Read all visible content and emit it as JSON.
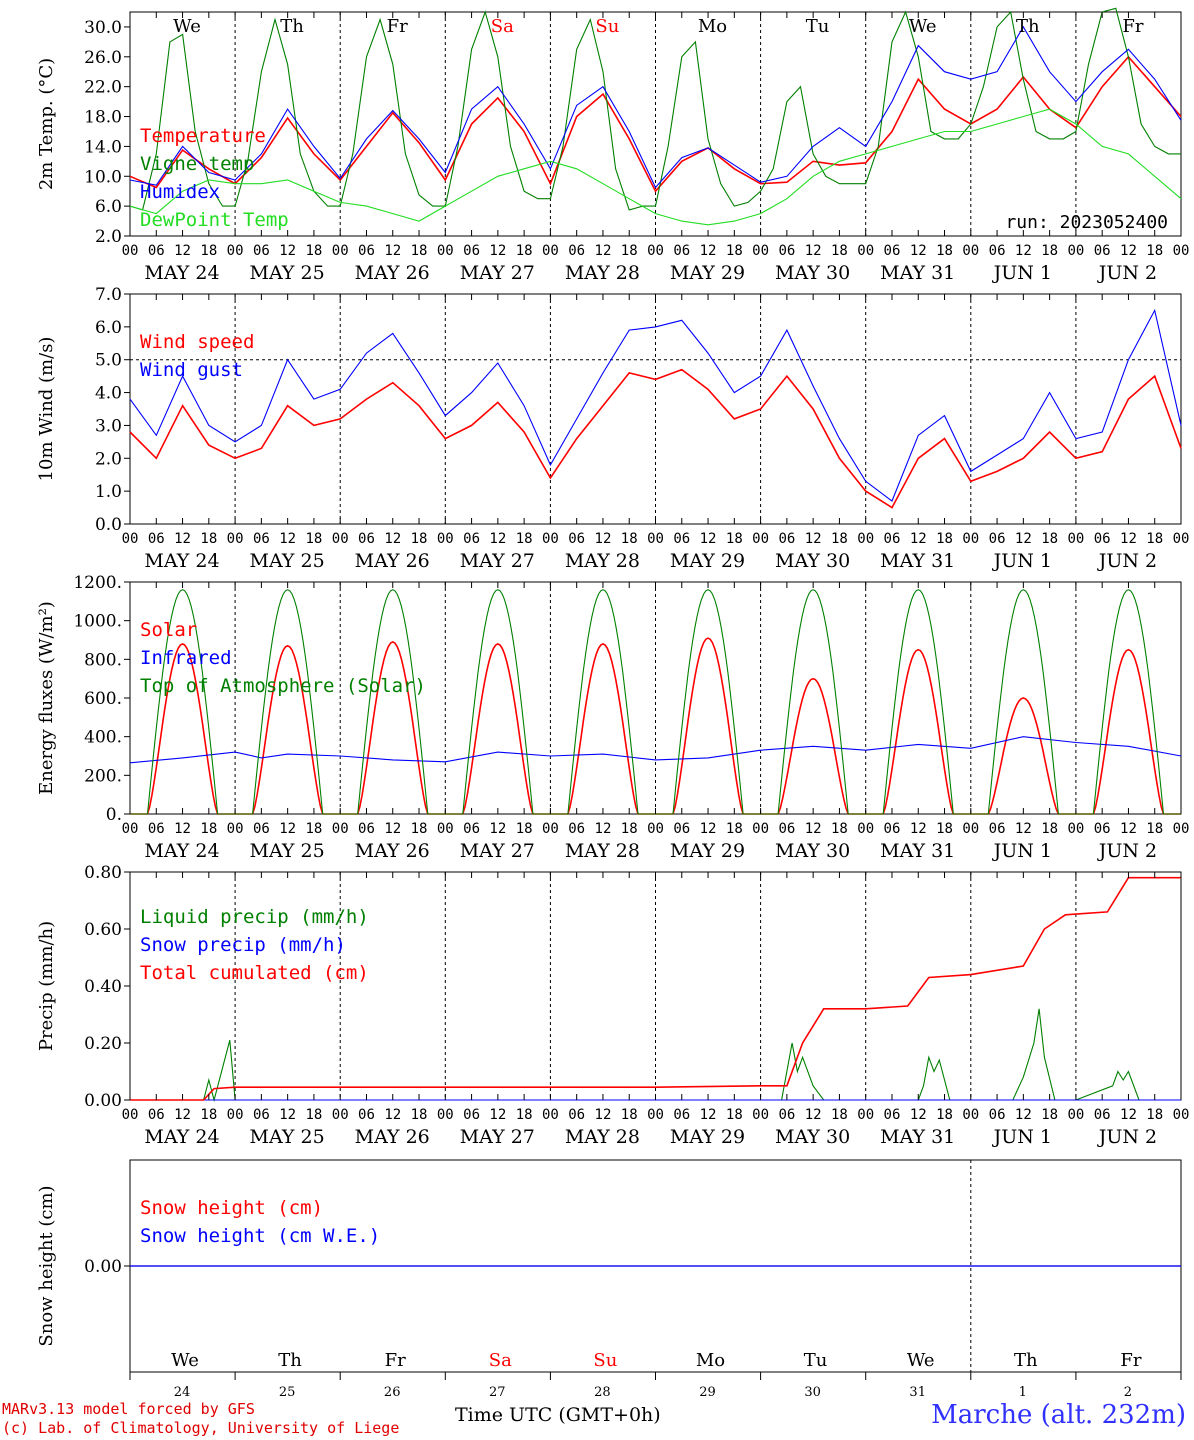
{
  "colors": {
    "red": "#ff0000",
    "green": "#008000",
    "blue": "#0000ff",
    "lightgreen": "#22dd22",
    "violet": "#8040a0"
  },
  "weekdays": [
    {
      "label": "We",
      "color": "#000000"
    },
    {
      "label": "Th",
      "color": "#000000"
    },
    {
      "label": "Fr",
      "color": "#000000"
    },
    {
      "label": "Sa",
      "color": "#ff0000"
    },
    {
      "label": "Su",
      "color": "#ff0000"
    },
    {
      "label": "Mo",
      "color": "#000000"
    },
    {
      "label": "Tu",
      "color": "#000000"
    },
    {
      "label": "We",
      "color": "#000000"
    },
    {
      "label": "Th",
      "color": "#000000"
    },
    {
      "label": "Fr",
      "color": "#000000"
    }
  ],
  "date_labels": [
    "MAY 24",
    "MAY 25",
    "MAY 26",
    "MAY 27",
    "MAY 28",
    "MAY 29",
    "MAY 30",
    "MAY 31",
    "JUN  1",
    "JUN  2"
  ],
  "hour_ticks": [
    "00",
    "06",
    "12",
    "18"
  ],
  "day_numbers": [
    "24",
    "25",
    "26",
    "27",
    "28",
    "29",
    "30",
    "31",
    "1",
    "2"
  ],
  "footer": {
    "model": "MARv3.13 model forced by GFS",
    "lab": "(c) Lab. of Climatology, University of Liege",
    "xtitle": "Time UTC (GMT+0h)",
    "station": "Marche (alt. 232m)"
  },
  "chart_data": [
    {
      "type": "line",
      "ylabel": "2m Temp. (°C)",
      "ylim": [
        2,
        32
      ],
      "yticks": [
        "2.0",
        "6.0",
        "10.0",
        "14.0",
        "18.0",
        "22.0",
        "26.0",
        "30.0"
      ],
      "annotation": "run: 2023052400",
      "series": [
        {
          "name": "Temperature",
          "color": "#ff0000",
          "x": [
            0,
            0.25,
            0.5,
            0.75,
            1,
            1.25,
            1.5,
            1.75,
            2,
            2.25,
            2.5,
            2.75,
            3,
            3.25,
            3.5,
            3.75,
            4,
            4.25,
            4.5,
            4.75,
            5,
            5.25,
            5.5,
            5.75,
            6,
            6.25,
            6.5,
            6.75,
            7,
            7.25,
            7.5,
            7.75,
            8,
            8.25,
            8.5,
            8.75,
            9,
            9.25,
            9.5,
            9.75,
            10
          ],
          "y": [
            10,
            8.5,
            13.5,
            11,
            9,
            12.5,
            17.8,
            13,
            9.5,
            14,
            18.5,
            14.5,
            9.5,
            17,
            20.5,
            16,
            9,
            18,
            21,
            15,
            8,
            12,
            13.8,
            11,
            9,
            9.2,
            12,
            11.5,
            11.8,
            16,
            23,
            19,
            17,
            19,
            23.3,
            19,
            16.5,
            22,
            26,
            22,
            18
          ]
        },
        {
          "name": "Vigne temp",
          "color": "#008000",
          "x": [
            0,
            0.12,
            0.25,
            0.38,
            0.5,
            0.62,
            0.75,
            0.88,
            1,
            1.12,
            1.25,
            1.38,
            1.5,
            1.62,
            1.75,
            1.88,
            2,
            2.12,
            2.25,
            2.38,
            2.5,
            2.62,
            2.75,
            2.88,
            3,
            3.12,
            3.25,
            3.38,
            3.5,
            3.62,
            3.75,
            3.88,
            4,
            4.12,
            4.25,
            4.38,
            4.5,
            4.62,
            4.75,
            4.88,
            5,
            5.12,
            5.25,
            5.38,
            5.5,
            5.62,
            5.75,
            5.88,
            6,
            6.12,
            6.25,
            6.38,
            6.5,
            6.62,
            6.75,
            6.88,
            7,
            7.12,
            7.25,
            7.38,
            7.5,
            7.62,
            7.75,
            7.88,
            8,
            8.12,
            8.25,
            8.38,
            8.5,
            8.62,
            8.75,
            8.88,
            9,
            9.12,
            9.25,
            9.38,
            9.5,
            9.62,
            9.75,
            9.88,
            10
          ],
          "y": [
            6,
            5.5,
            13,
            28,
            29,
            16,
            9,
            6,
            6,
            12,
            24,
            31,
            25,
            13,
            8,
            6,
            6,
            13,
            26,
            31,
            25,
            13,
            7.5,
            6,
            6,
            14,
            27,
            32,
            26,
            14,
            8,
            7,
            7,
            14,
            27,
            31,
            24,
            11,
            5.5,
            6,
            6,
            14,
            26,
            28,
            15,
            9,
            6,
            6.5,
            8,
            11,
            20,
            22,
            13,
            10,
            9,
            9,
            9,
            14,
            28,
            32,
            26,
            16,
            15,
            15,
            17,
            22,
            30,
            32,
            23,
            16,
            15,
            15,
            16,
            25,
            32,
            33,
            26,
            17,
            14,
            13,
            13
          ]
        },
        {
          "name": "Humidex",
          "color": "#0000ff",
          "x": [
            0,
            0.25,
            0.5,
            0.75,
            1,
            1.25,
            1.5,
            1.75,
            2,
            2.25,
            2.5,
            2.75,
            3,
            3.25,
            3.5,
            3.75,
            4,
            4.25,
            4.5,
            4.75,
            5,
            5.25,
            5.5,
            5.75,
            6,
            6.25,
            6.5,
            6.75,
            7,
            7.25,
            7.5,
            7.75,
            8,
            8.25,
            8.5,
            8.75,
            9,
            9.25,
            9.5,
            9.75,
            10
          ],
          "y": [
            9.5,
            8.8,
            14,
            10.5,
            9.5,
            13,
            19,
            14,
            9.7,
            15,
            18.8,
            15,
            10.5,
            19,
            22,
            17,
            11,
            19.5,
            22,
            16,
            8.5,
            12.5,
            13.8,
            11.5,
            9.2,
            10,
            14,
            16.5,
            14,
            20,
            27.5,
            24,
            23,
            24,
            30,
            24,
            20,
            24,
            27,
            23,
            17.5
          ]
        },
        {
          "name": "DewPoint Temp",
          "color": "#22dd22",
          "x": [
            0,
            0.25,
            0.5,
            0.75,
            1,
            1.25,
            1.5,
            1.75,
            2,
            2.25,
            2.5,
            2.75,
            3,
            3.25,
            3.5,
            3.75,
            4,
            4.25,
            4.5,
            4.75,
            5,
            5.25,
            5.5,
            5.75,
            6,
            6.25,
            6.5,
            6.75,
            7,
            7.25,
            7.5,
            7.75,
            8,
            8.25,
            8.5,
            8.75,
            9,
            9.25,
            9.5,
            9.75,
            10
          ],
          "y": [
            6,
            5,
            8,
            9.5,
            9,
            9,
            9.5,
            8,
            6.5,
            6,
            5,
            4,
            6,
            8,
            10,
            11,
            12,
            11,
            9,
            7,
            5,
            4,
            3.5,
            4,
            5,
            7,
            10,
            12,
            13,
            14,
            15,
            16,
            16,
            17,
            18,
            19,
            17,
            14,
            13,
            10,
            7
          ]
        }
      ]
    },
    {
      "type": "line",
      "ylabel": "10m Wind (m/s)",
      "ylim": [
        0,
        7
      ],
      "yticks": [
        "0.0",
        "1.0",
        "2.0",
        "3.0",
        "4.0",
        "5.0",
        "6.0",
        "7.0"
      ],
      "hline": 5.0,
      "series": [
        {
          "name": "Wind speed",
          "color": "#ff0000",
          "x": [
            0,
            0.25,
            0.5,
            0.75,
            1,
            1.25,
            1.5,
            1.75,
            2,
            2.25,
            2.5,
            2.75,
            3,
            3.25,
            3.5,
            3.75,
            4,
            4.25,
            4.5,
            4.75,
            5,
            5.25,
            5.5,
            5.75,
            6,
            6.25,
            6.5,
            6.75,
            7,
            7.25,
            7.5,
            7.75,
            8,
            8.25,
            8.5,
            8.75,
            9,
            9.25,
            9.5,
            9.75,
            10
          ],
          "y": [
            2.8,
            2.0,
            3.6,
            2.4,
            2.0,
            2.3,
            3.6,
            3.0,
            3.2,
            3.8,
            4.3,
            3.6,
            2.6,
            3.0,
            3.7,
            2.8,
            1.4,
            2.6,
            3.6,
            4.6,
            4.4,
            4.7,
            4.1,
            3.2,
            3.5,
            4.5,
            3.5,
            2.0,
            1.0,
            0.5,
            2.0,
            2.6,
            1.3,
            1.6,
            2.0,
            2.8,
            2.0,
            2.2,
            3.8,
            4.5,
            2.3
          ]
        },
        {
          "name": "Wind gust",
          "color": "#0000ff",
          "x": [
            0,
            0.25,
            0.5,
            0.75,
            1,
            1.25,
            1.5,
            1.75,
            2,
            2.25,
            2.5,
            2.75,
            3,
            3.25,
            3.5,
            3.75,
            4,
            4.25,
            4.5,
            4.75,
            5,
            5.25,
            5.5,
            5.75,
            6,
            6.25,
            6.5,
            6.75,
            7,
            7.25,
            7.5,
            7.75,
            8,
            8.25,
            8.5,
            8.75,
            9,
            9.25,
            9.5,
            9.75,
            10
          ],
          "y": [
            3.8,
            2.7,
            4.5,
            3.0,
            2.5,
            3.0,
            5.0,
            3.8,
            4.1,
            5.2,
            5.8,
            4.6,
            3.3,
            4.0,
            4.9,
            3.6,
            1.8,
            3.2,
            4.6,
            5.9,
            6.0,
            6.2,
            5.2,
            4.0,
            4.5,
            5.9,
            4.2,
            2.6,
            1.3,
            0.7,
            2.7,
            3.3,
            1.6,
            2.1,
            2.6,
            4.0,
            2.6,
            2.8,
            5.0,
            6.5,
            3.0
          ]
        }
      ]
    },
    {
      "type": "line",
      "ylabel": "Energy fluxes (W/m²)",
      "ylim": [
        0,
        1200
      ],
      "yticks": [
        "0.",
        "200.",
        "400.",
        "600.",
        "800.",
        "1000.",
        "1200."
      ],
      "series": [
        {
          "name": "Solar",
          "color": "#ff0000",
          "peaks": [
            880,
            870,
            890,
            880,
            880,
            910,
            700,
            850,
            600,
            850
          ]
        },
        {
          "name": "Infrared",
          "color": "#0000ff",
          "x": [
            0,
            0.5,
            1,
            1.25,
            1.5,
            2,
            2.5,
            3,
            3.5,
            4,
            4.5,
            5,
            5.5,
            6,
            6.5,
            7,
            7.5,
            8,
            8.5,
            9,
            9.5,
            10
          ],
          "y": [
            265,
            290,
            320,
            290,
            310,
            300,
            280,
            270,
            320,
            300,
            310,
            280,
            290,
            330,
            350,
            330,
            360,
            340,
            400,
            370,
            350,
            300
          ]
        },
        {
          "name": "Top of Atmosphere (Solar)",
          "color": "#008000",
          "peaks": [
            1160,
            1160,
            1160,
            1160,
            1160,
            1160,
            1160,
            1160,
            1160,
            1160
          ]
        }
      ]
    },
    {
      "type": "line",
      "ylabel": "Precip (mm/h)",
      "ylim": [
        0,
        0.8
      ],
      "yticks": [
        "0.00",
        "0.20",
        "0.40",
        "0.60",
        "0.80"
      ],
      "series": [
        {
          "name": "Liquid precip (mm/h)",
          "color": "#008000",
          "x": [
            0,
            0.7,
            0.75,
            0.8,
            0.95,
            1,
            6.2,
            6.3,
            6.35,
            6.4,
            6.5,
            6.6,
            7,
            7.5,
            7.55,
            7.6,
            7.65,
            7.7,
            7.8,
            8,
            8.4,
            8.5,
            8.6,
            8.65,
            8.7,
            8.8,
            9,
            9.35,
            9.4,
            9.45,
            9.5,
            9.6,
            10
          ],
          "y": [
            0,
            0,
            0.07,
            0,
            0.21,
            0,
            0,
            0.2,
            0.1,
            0.15,
            0.05,
            0,
            0,
            0,
            0.05,
            0.15,
            0.1,
            0.14,
            0,
            0,
            0,
            0.08,
            0.2,
            0.32,
            0.15,
            0,
            0,
            0.05,
            0.1,
            0.07,
            0.1,
            0,
            0
          ]
        },
        {
          "name": "Snow precip (mm/h)",
          "color": "#0000ff",
          "x": [
            0,
            10
          ],
          "y": [
            0,
            0
          ]
        },
        {
          "name": "Total cumulated (cm)",
          "color": "#ff0000",
          "x": [
            0,
            0.7,
            0.8,
            1,
            5,
            6,
            6.25,
            6.4,
            6.6,
            7,
            7.4,
            7.6,
            8,
            8.5,
            8.7,
            8.9,
            9.3,
            9.5,
            10
          ],
          "y": [
            0,
            0,
            0.04,
            0.045,
            0.045,
            0.05,
            0.05,
            0.2,
            0.32,
            0.32,
            0.33,
            0.43,
            0.44,
            0.47,
            0.6,
            0.65,
            0.66,
            0.78,
            0.78
          ]
        }
      ]
    },
    {
      "type": "line",
      "ylabel": "Snow height (cm)",
      "yticks": [
        "0.00"
      ],
      "series": [
        {
          "name": "Snow height (cm)",
          "color": "#ff0000",
          "x": [
            0,
            10
          ],
          "y": [
            0,
            0
          ]
        },
        {
          "name": "Snow height (cm W.E.)",
          "color": "#0000ff",
          "x": [
            0,
            10
          ],
          "y": [
            0,
            0
          ]
        }
      ]
    }
  ]
}
